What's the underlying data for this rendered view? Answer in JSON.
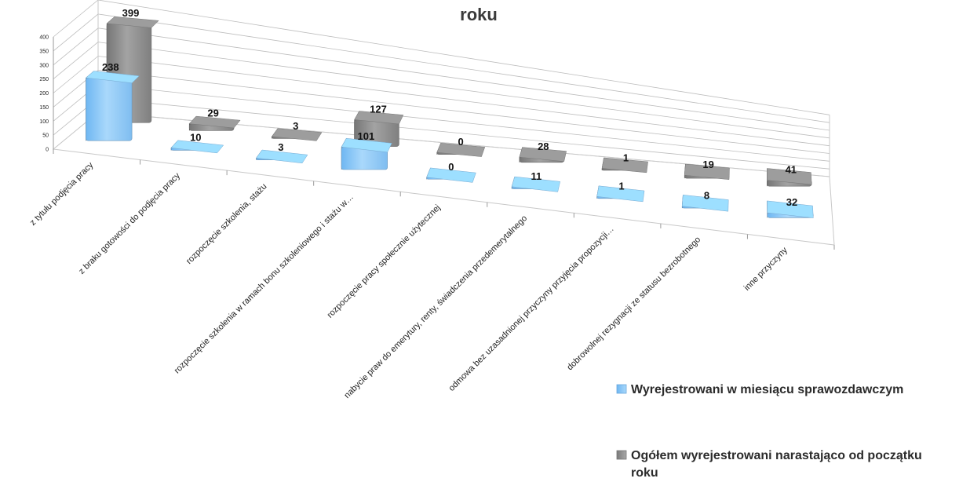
{
  "chart_data": {
    "type": "bar",
    "title": "roku",
    "categories": [
      "z tytułu podjęcia pracy",
      "z braku gotowości do podjęcia pracy",
      "rozpoczęcie szkolenia, stażu",
      "rozpoczęcie szkolenia w ramach bonu szkoleniowego i stażu w…",
      "rozpoczęcie pracy społecznie użytecznej",
      "nabycie praw do emerytury, renty, świadczenia przedemerytalnego",
      "odmowa bez uzasadnionej przyczyny przyjęcia propozycji…",
      "dobrowolnej rezygnacji ze statusu bezrobotnego",
      "inne przyczyny"
    ],
    "series": [
      {
        "name": "Wyrejestrowani w miesiącu sprawozdawczym",
        "color": "#8cc7f6",
        "values": [
          238,
          10,
          3,
          101,
          0,
          11,
          1,
          8,
          32
        ]
      },
      {
        "name": "Ogółem wyrejestrowani narastająco od początku roku",
        "color": "#8c8c8c",
        "values": [
          399,
          29,
          3,
          127,
          0,
          28,
          1,
          19,
          41
        ]
      }
    ],
    "ylim": [
      0,
      400
    ],
    "yticks": [
      "0",
      "50",
      "100",
      "150",
      "200",
      "250",
      "300",
      "350",
      "400"
    ],
    "grid": true,
    "legend": "bottom-right",
    "xlabel": "",
    "ylabel": ""
  },
  "legend": {
    "series1": "Wyrejestrowani w miesiącu sprawozdawczym",
    "series2_line1": "Ogółem wyrejestrowani narastająco od początku",
    "series2_line2": "roku"
  }
}
